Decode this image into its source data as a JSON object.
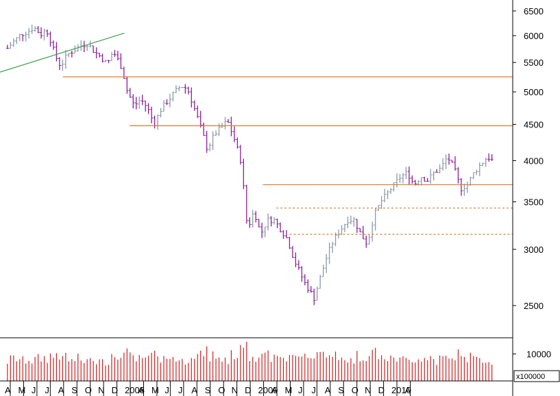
{
  "chart_data": {
    "type": "bar",
    "subtype": "ohlc-with-volume",
    "scale": "log",
    "ylim": [
      2280,
      6650
    ],
    "yticks": [
      2500,
      3000,
      3500,
      4000,
      4500,
      5000,
      5500,
      6000,
      6500
    ],
    "ytick_labels": [
      "2500",
      "3000",
      "3500",
      "4000",
      "4500",
      "5000",
      "5500",
      "6000",
      "6500"
    ],
    "xtick_labels": [
      "A",
      "M",
      "J",
      "J",
      "A",
      "S",
      "O",
      "N",
      "D",
      "2008",
      "A",
      "M",
      "J",
      "J",
      "A",
      "S",
      "O",
      "N",
      "D",
      "2009",
      "A",
      "M",
      "J",
      "J",
      "A",
      "S",
      "O",
      "N",
      "D",
      "2010",
      "A"
    ],
    "colors": {
      "up": "#8c9aa8",
      "down": "#8b1c9a",
      "volume": "#d41c1c",
      "trendline": "#3aa04a",
      "support": "#e07a2c",
      "axis": "#000000"
    },
    "price_points": [
      {
        "date": "2007-04",
        "close": 5760
      },
      {
        "date": "2007-04",
        "close": 5900
      },
      {
        "date": "2007-05",
        "close": 6020
      },
      {
        "date": "2007-05",
        "close": 6080
      },
      {
        "date": "2007-06",
        "close": 6160
      },
      {
        "date": "2007-06",
        "close": 6020
      },
      {
        "date": "2007-07",
        "close": 6120
      },
      {
        "date": "2007-07",
        "close": 5900
      },
      {
        "date": "2007-07",
        "close": 5620
      },
      {
        "date": "2007-08",
        "close": 5430
      },
      {
        "date": "2007-08",
        "close": 5650
      },
      {
        "date": "2007-09",
        "close": 5720
      },
      {
        "date": "2007-09",
        "close": 5810
      },
      {
        "date": "2007-10",
        "close": 5850
      },
      {
        "date": "2007-10",
        "close": 5700
      },
      {
        "date": "2007-11",
        "close": 5600
      },
      {
        "date": "2007-11",
        "close": 5470
      },
      {
        "date": "2007-12",
        "close": 5700
      },
      {
        "date": "2007-12",
        "close": 5560
      },
      {
        "date": "2007-12",
        "close": 5400
      },
      {
        "date": "2008-01",
        "close": 5000
      },
      {
        "date": "2008-01",
        "close": 4780
      },
      {
        "date": "2008-02",
        "close": 4880
      },
      {
        "date": "2008-02",
        "close": 4750
      },
      {
        "date": "2008-03",
        "close": 4500
      },
      {
        "date": "2008-03",
        "close": 4720
      },
      {
        "date": "2008-04",
        "close": 4850
      },
      {
        "date": "2008-04",
        "close": 4980
      },
      {
        "date": "2008-05",
        "close": 5100
      },
      {
        "date": "2008-05",
        "close": 5050
      },
      {
        "date": "2008-06",
        "close": 4750
      },
      {
        "date": "2008-06",
        "close": 4450
      },
      {
        "date": "2008-07",
        "close": 4150
      },
      {
        "date": "2008-07",
        "close": 4350
      },
      {
        "date": "2008-08",
        "close": 4450
      },
      {
        "date": "2008-08",
        "close": 4550
      },
      {
        "date": "2008-09",
        "close": 4300
      },
      {
        "date": "2008-09",
        "close": 4000
      },
      {
        "date": "2008-10",
        "close": 3200
      },
      {
        "date": "2008-10",
        "close": 3400
      },
      {
        "date": "2008-11",
        "close": 3150
      },
      {
        "date": "2008-11",
        "close": 3300
      },
      {
        "date": "2008-12",
        "close": 3300
      },
      {
        "date": "2008-12",
        "close": 3200
      },
      {
        "date": "2009-01",
        "close": 3100
      },
      {
        "date": "2009-01",
        "close": 2900
      },
      {
        "date": "2009-02",
        "close": 2700
      },
      {
        "date": "2009-03",
        "close": 2560
      },
      {
        "date": "2009-03",
        "close": 2750
      },
      {
        "date": "2009-04",
        "close": 2950
      },
      {
        "date": "2009-04",
        "close": 3100
      },
      {
        "date": "2009-05",
        "close": 3200
      },
      {
        "date": "2009-05",
        "close": 3300
      },
      {
        "date": "2009-06",
        "close": 3300
      },
      {
        "date": "2009-06",
        "close": 3150
      },
      {
        "date": "2009-07",
        "close": 3050
      },
      {
        "date": "2009-07",
        "close": 3350
      },
      {
        "date": "2009-08",
        "close": 3500
      },
      {
        "date": "2009-08",
        "close": 3600
      },
      {
        "date": "2009-09",
        "close": 3700
      },
      {
        "date": "2009-09",
        "close": 3800
      },
      {
        "date": "2009-10",
        "close": 3850
      },
      {
        "date": "2009-10",
        "close": 3700
      },
      {
        "date": "2009-11",
        "close": 3800
      },
      {
        "date": "2009-11",
        "close": 3750
      },
      {
        "date": "2009-12",
        "close": 3850
      },
      {
        "date": "2009-12",
        "close": 3900
      },
      {
        "date": "2010-01",
        "close": 4050
      },
      {
        "date": "2010-01",
        "close": 3900
      },
      {
        "date": "2010-02",
        "close": 3650
      },
      {
        "date": "2010-02",
        "close": 3700
      },
      {
        "date": "2010-03",
        "close": 3850
      },
      {
        "date": "2010-03",
        "close": 3950
      },
      {
        "date": "2010-04",
        "close": 4050
      },
      {
        "date": "2010-04",
        "close": 3980
      }
    ],
    "trendline": {
      "from": {
        "date": "2007-04",
        "value": 5330
      },
      "to": {
        "date": "2007-12",
        "value": 6050
      }
    },
    "support_lines": [
      {
        "value": 5250,
        "from": "2007-08",
        "style": "solid"
      },
      {
        "value": 4480,
        "from": "2008-01",
        "style": "solid"
      },
      {
        "value": 3700,
        "from": "2008-11",
        "style": "solid"
      },
      {
        "value": 3430,
        "from": "2008-12",
        "style": "dashed"
      },
      {
        "value": 3150,
        "from": "2009-01",
        "style": "dashed"
      }
    ],
    "volume": {
      "ytick": 10000,
      "ytick_label": "10000",
      "unit_label": "x100000",
      "ylim": [
        0,
        15000
      ]
    }
  }
}
